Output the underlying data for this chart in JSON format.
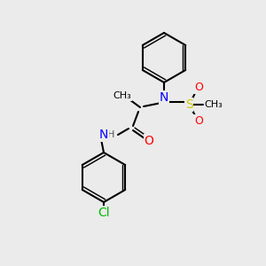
{
  "bg_color": "#ebebeb",
  "bond_color": "#000000",
  "bond_width": 1.5,
  "atom_colors": {
    "N": "#0000FF",
    "O": "#FF0000",
    "S": "#CCCC00",
    "Cl": "#00BB00",
    "H": "#555555"
  },
  "font_size": 9,
  "font_size_small": 8
}
